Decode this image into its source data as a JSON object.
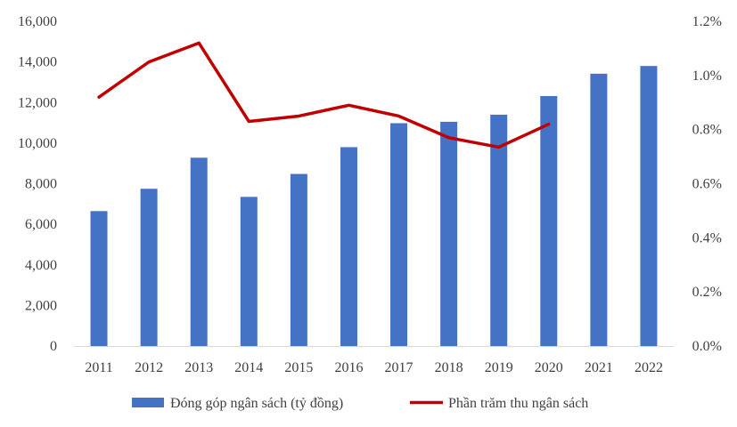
{
  "chart_data": {
    "type": "bar",
    "categories": [
      "2011",
      "2012",
      "2013",
      "2014",
      "2015",
      "2016",
      "2017",
      "2018",
      "2019",
      "2020",
      "2021",
      "2022"
    ],
    "series": [
      {
        "name": "Đóng góp ngân sách (tỷ đồng)",
        "type": "bar",
        "axis": "left",
        "color": "#4472C4",
        "values": [
          6650,
          7750,
          9280,
          7350,
          8480,
          9800,
          10980,
          11050,
          11400,
          12320,
          13420,
          13800
        ]
      },
      {
        "name": "Phần trăm thu ngân sách",
        "type": "line",
        "axis": "right",
        "color": "#C00000",
        "values": [
          0.92,
          1.05,
          1.12,
          0.83,
          0.85,
          0.89,
          0.85,
          0.77,
          0.735,
          0.82,
          null,
          null
        ]
      }
    ],
    "y_left": {
      "ylim": [
        0,
        16000
      ],
      "ticks": [
        0,
        2000,
        4000,
        6000,
        8000,
        10000,
        12000,
        14000,
        16000
      ],
      "tick_labels": [
        "0",
        "2,000",
        "4,000",
        "6,000",
        "8,000",
        "10,000",
        "12,000",
        "14,000",
        "16,000"
      ]
    },
    "y_right": {
      "ylim": [
        0,
        1.2
      ],
      "ticks": [
        0,
        0.2,
        0.4,
        0.6,
        0.8,
        1.0,
        1.2
      ],
      "tick_labels": [
        "0.0%",
        "0.2%",
        "0.4%",
        "0.6%",
        "0.8%",
        "1.0%",
        "1.2%"
      ]
    },
    "title": "",
    "xlabel": "",
    "ylabel": "",
    "grid": false,
    "legend_position": "bottom",
    "axis_color": "#D9D9D9"
  }
}
